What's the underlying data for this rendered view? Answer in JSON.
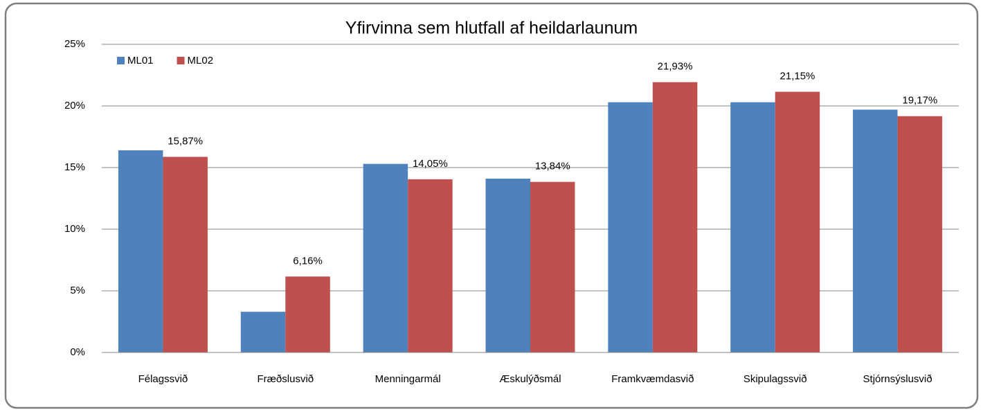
{
  "chart_data": {
    "type": "bar",
    "title": "Yfirvinna sem hlutfall af heildarlaunum",
    "categories": [
      "Félagssvið",
      "Fræðslusvið",
      "Menningarmál",
      "Æskulýðsmál",
      "Framkvæmdasvið",
      "Skipulagssvið",
      "Stjórnsýslusvið"
    ],
    "series": [
      {
        "name": "ML01",
        "color": "#4f81bd",
        "values": [
          16.4,
          3.3,
          15.3,
          14.1,
          20.3,
          20.3,
          19.7
        ]
      },
      {
        "name": "ML02",
        "color": "#c0504d",
        "values": [
          15.87,
          6.16,
          14.05,
          13.84,
          21.93,
          21.15,
          19.17
        ],
        "value_labels": [
          "15,87%",
          "6,16%",
          "14,05%",
          "13,84%",
          "21,93%",
          "21,15%",
          "19,17%"
        ]
      }
    ],
    "ylim": [
      0,
      25
    ],
    "yticks": [
      {
        "value": 0,
        "label": "0%"
      },
      {
        "value": 5,
        "label": "5%"
      },
      {
        "value": 10,
        "label": "10%"
      },
      {
        "value": 15,
        "label": "15%"
      },
      {
        "value": 20,
        "label": "20%"
      },
      {
        "value": 25,
        "label": "25%"
      }
    ],
    "grid": true,
    "legend": "top-left"
  }
}
